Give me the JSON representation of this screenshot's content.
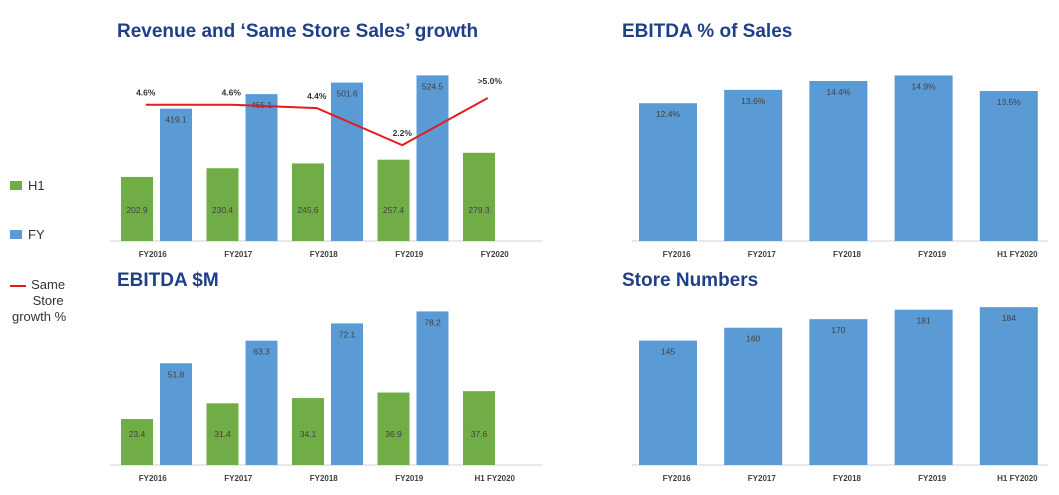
{
  "colors": {
    "h1": "#70ad47",
    "fy": "#5b9bd5",
    "growth": "#e31c1c",
    "title": "#1f3f87"
  },
  "legend": {
    "h1": "H1",
    "fy": "FY",
    "growth_line1": "Same",
    "growth_line2": "Store",
    "growth_line3": "growth %"
  },
  "chart_data": [
    {
      "id": "revenue",
      "type": "bar",
      "title": "Revenue and ‘Same Store Sales’ growth",
      "categories": [
        "FY2016",
        "FY2017",
        "FY2018",
        "FY2019",
        "FY2020"
      ],
      "series": [
        {
          "name": "H1",
          "values": [
            202.9,
            230.4,
            245.6,
            257.4,
            279.3
          ],
          "labels": [
            "202.9",
            "230.4",
            "245.6",
            "257.4",
            "279.3"
          ]
        },
        {
          "name": "FY",
          "values": [
            419.1,
            465.1,
            501.6,
            524.5,
            null
          ],
          "labels": [
            "419.1",
            "465.1",
            "501.6",
            "524.5",
            ""
          ]
        }
      ],
      "line": {
        "name": "Same Store growth %",
        "values": [
          4.6,
          4.6,
          4.4,
          2.2,
          5.0
        ],
        "labels": [
          "4.6%",
          "4.6%",
          "4.4%",
          "2.2%",
          ">5.0%"
        ]
      },
      "ylim": [
        0,
        570
      ],
      "line_ylim": [
        -3.5,
        7.2
      ],
      "grid": false
    },
    {
      "id": "ebitda-pct",
      "type": "bar",
      "title": "EBITDA % of Sales",
      "categories": [
        "FY2016",
        "FY2017",
        "FY2018",
        "FY2019",
        "H1 FY2020"
      ],
      "series": [
        {
          "name": "",
          "values": [
            12.4,
            13.6,
            14.4,
            14.9,
            13.5
          ],
          "labels": [
            "12.4%",
            "13.6%",
            "14.4%",
            "14.9%",
            "13.5%"
          ]
        }
      ],
      "ylim": [
        0,
        16.2
      ],
      "grid": false
    },
    {
      "id": "ebitda-m",
      "type": "bar",
      "title": "EBITDA $M",
      "categories": [
        "FY2016",
        "FY2017",
        "FY2018",
        "FY2019",
        "H1 FY2020"
      ],
      "series": [
        {
          "name": "H1",
          "values": [
            23.4,
            31.4,
            34.1,
            36.9,
            37.6
          ],
          "labels": [
            "23.4",
            "31.4",
            "34.1",
            "36.9",
            "37.6"
          ]
        },
        {
          "name": "FY",
          "values": [
            51.8,
            63.3,
            72.1,
            78.2,
            null
          ],
          "labels": [
            "51.8",
            "63.3",
            "72.1",
            "78.2",
            ""
          ]
        }
      ],
      "ylim": [
        0,
        83
      ],
      "grid": false
    },
    {
      "id": "store-numbers",
      "type": "bar",
      "title": "Store Numbers",
      "categories": [
        "FY2016",
        "FY2017",
        "FY2018",
        "FY2019",
        "H1 FY2020"
      ],
      "series": [
        {
          "name": "",
          "values": [
            145,
            160,
            170,
            181,
            184
          ],
          "labels": [
            "145",
            "160",
            "170",
            "181",
            "184"
          ]
        }
      ],
      "ylim": [
        0,
        190
      ],
      "grid": false
    }
  ]
}
